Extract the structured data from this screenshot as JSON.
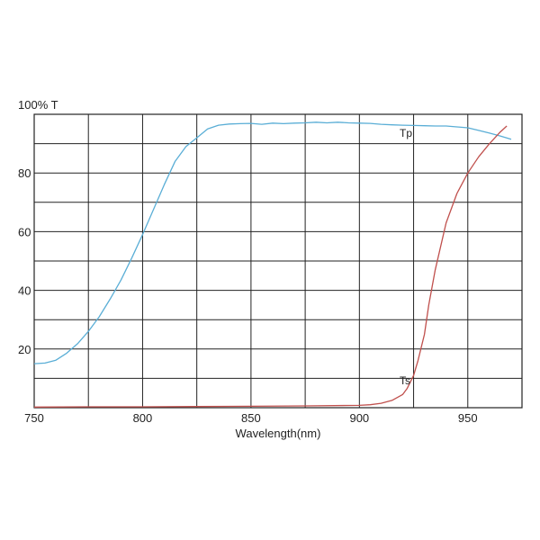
{
  "chart_data": {
    "type": "line",
    "ylabel": "100% T",
    "xlabel": "Wavelength(nm)",
    "xlim": [
      750,
      975
    ],
    "ylim": [
      0,
      100
    ],
    "x_ticks": [
      750,
      800,
      850,
      900,
      950
    ],
    "y_ticks": [
      20,
      40,
      60,
      80
    ],
    "x_grid": [
      775,
      800,
      825,
      850,
      875,
      900,
      925,
      950
    ],
    "y_grid": [
      10,
      20,
      30,
      40,
      50,
      60,
      70,
      80,
      90
    ],
    "grid": true,
    "series": [
      {
        "name": "Tp",
        "color": "#5aaed6",
        "x": [
          750,
          755,
          760,
          765,
          770,
          775,
          780,
          785,
          790,
          795,
          800,
          805,
          810,
          815,
          820,
          825,
          830,
          835,
          840,
          845,
          850,
          855,
          860,
          865,
          870,
          875,
          880,
          885,
          890,
          895,
          900,
          905,
          910,
          915,
          920,
          925,
          930,
          935,
          940,
          945,
          950,
          955,
          960,
          965,
          970
        ],
        "values": [
          15,
          15.2,
          16.2,
          18.6,
          21.8,
          26,
          31,
          37,
          43.5,
          51,
          59,
          67.5,
          76,
          84,
          89,
          92,
          95,
          96.3,
          96.7,
          96.8,
          96.9,
          96.6,
          97,
          96.8,
          97,
          97.1,
          97.3,
          97.1,
          97.3,
          97.1,
          97,
          96.9,
          96.6,
          96.4,
          96.3,
          96.2,
          96.1,
          96,
          96,
          95.7,
          95.4,
          94.5,
          93.6,
          92.6,
          91.5
        ]
      },
      {
        "name": "Ts",
        "color": "#c0504d",
        "x": [
          750,
          775,
          800,
          825,
          850,
          875,
          900,
          905,
          910,
          915,
          920,
          922,
          925,
          927,
          930,
          932,
          935,
          940,
          945,
          950,
          955,
          960,
          965,
          968
        ],
        "values": [
          0.2,
          0.3,
          0.3,
          0.4,
          0.5,
          0.6,
          0.8,
          1,
          1.5,
          2.5,
          4.5,
          6.5,
          11,
          16,
          25,
          35,
          47,
          63,
          73,
          80,
          85.5,
          90,
          94,
          96
        ]
      }
    ],
    "labels": {
      "tp_text": "Tp",
      "ts_text": "Ts"
    }
  }
}
